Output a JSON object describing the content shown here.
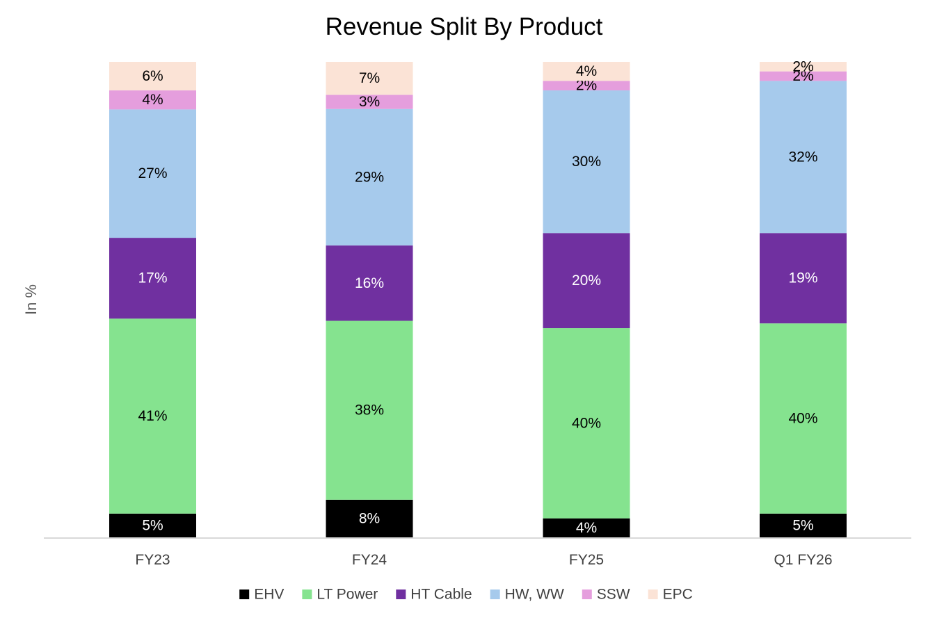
{
  "chart_data": {
    "type": "bar",
    "stacked": true,
    "title": "Revenue Split By Product",
    "xlabel": "",
    "ylabel": "In %",
    "ylim": [
      0,
      100
    ],
    "grid": false,
    "legend_position": "bottom",
    "categories": [
      "FY23",
      "FY24",
      "FY25",
      "Q1 FY26"
    ],
    "series": [
      {
        "name": "EHV",
        "color": "#000000",
        "text_color": "#ffffff",
        "values": [
          5,
          8,
          4,
          5
        ]
      },
      {
        "name": "LT Power",
        "color": "#85e38f",
        "text_color": "#000000",
        "values": [
          41,
          38,
          40,
          40
        ]
      },
      {
        "name": "HT Cable",
        "color": "#7030a0",
        "text_color": "#ffffff",
        "values": [
          17,
          16,
          20,
          19
        ]
      },
      {
        "name": "HW, WW",
        "color": "#a6caec",
        "text_color": "#000000",
        "values": [
          27,
          29,
          30,
          32
        ]
      },
      {
        "name": "SSW",
        "color": "#e59edd",
        "text_color": "#000000",
        "values": [
          4,
          3,
          2,
          2
        ]
      },
      {
        "name": "EPC",
        "color": "#fbe3d6",
        "text_color": "#000000",
        "values": [
          6,
          7,
          4,
          2
        ]
      }
    ],
    "data_labels": [
      [
        "5%",
        "8%",
        "4%",
        "5%"
      ],
      [
        "41%",
        "38%",
        "40%",
        "40%"
      ],
      [
        "17%",
        "16%",
        "20%",
        "19%"
      ],
      [
        "27%",
        "29%",
        "30%",
        "32%"
      ],
      [
        "4%",
        "3%",
        "2%",
        "2%"
      ],
      [
        "6%",
        "7%",
        "4%",
        "2%"
      ]
    ]
  }
}
